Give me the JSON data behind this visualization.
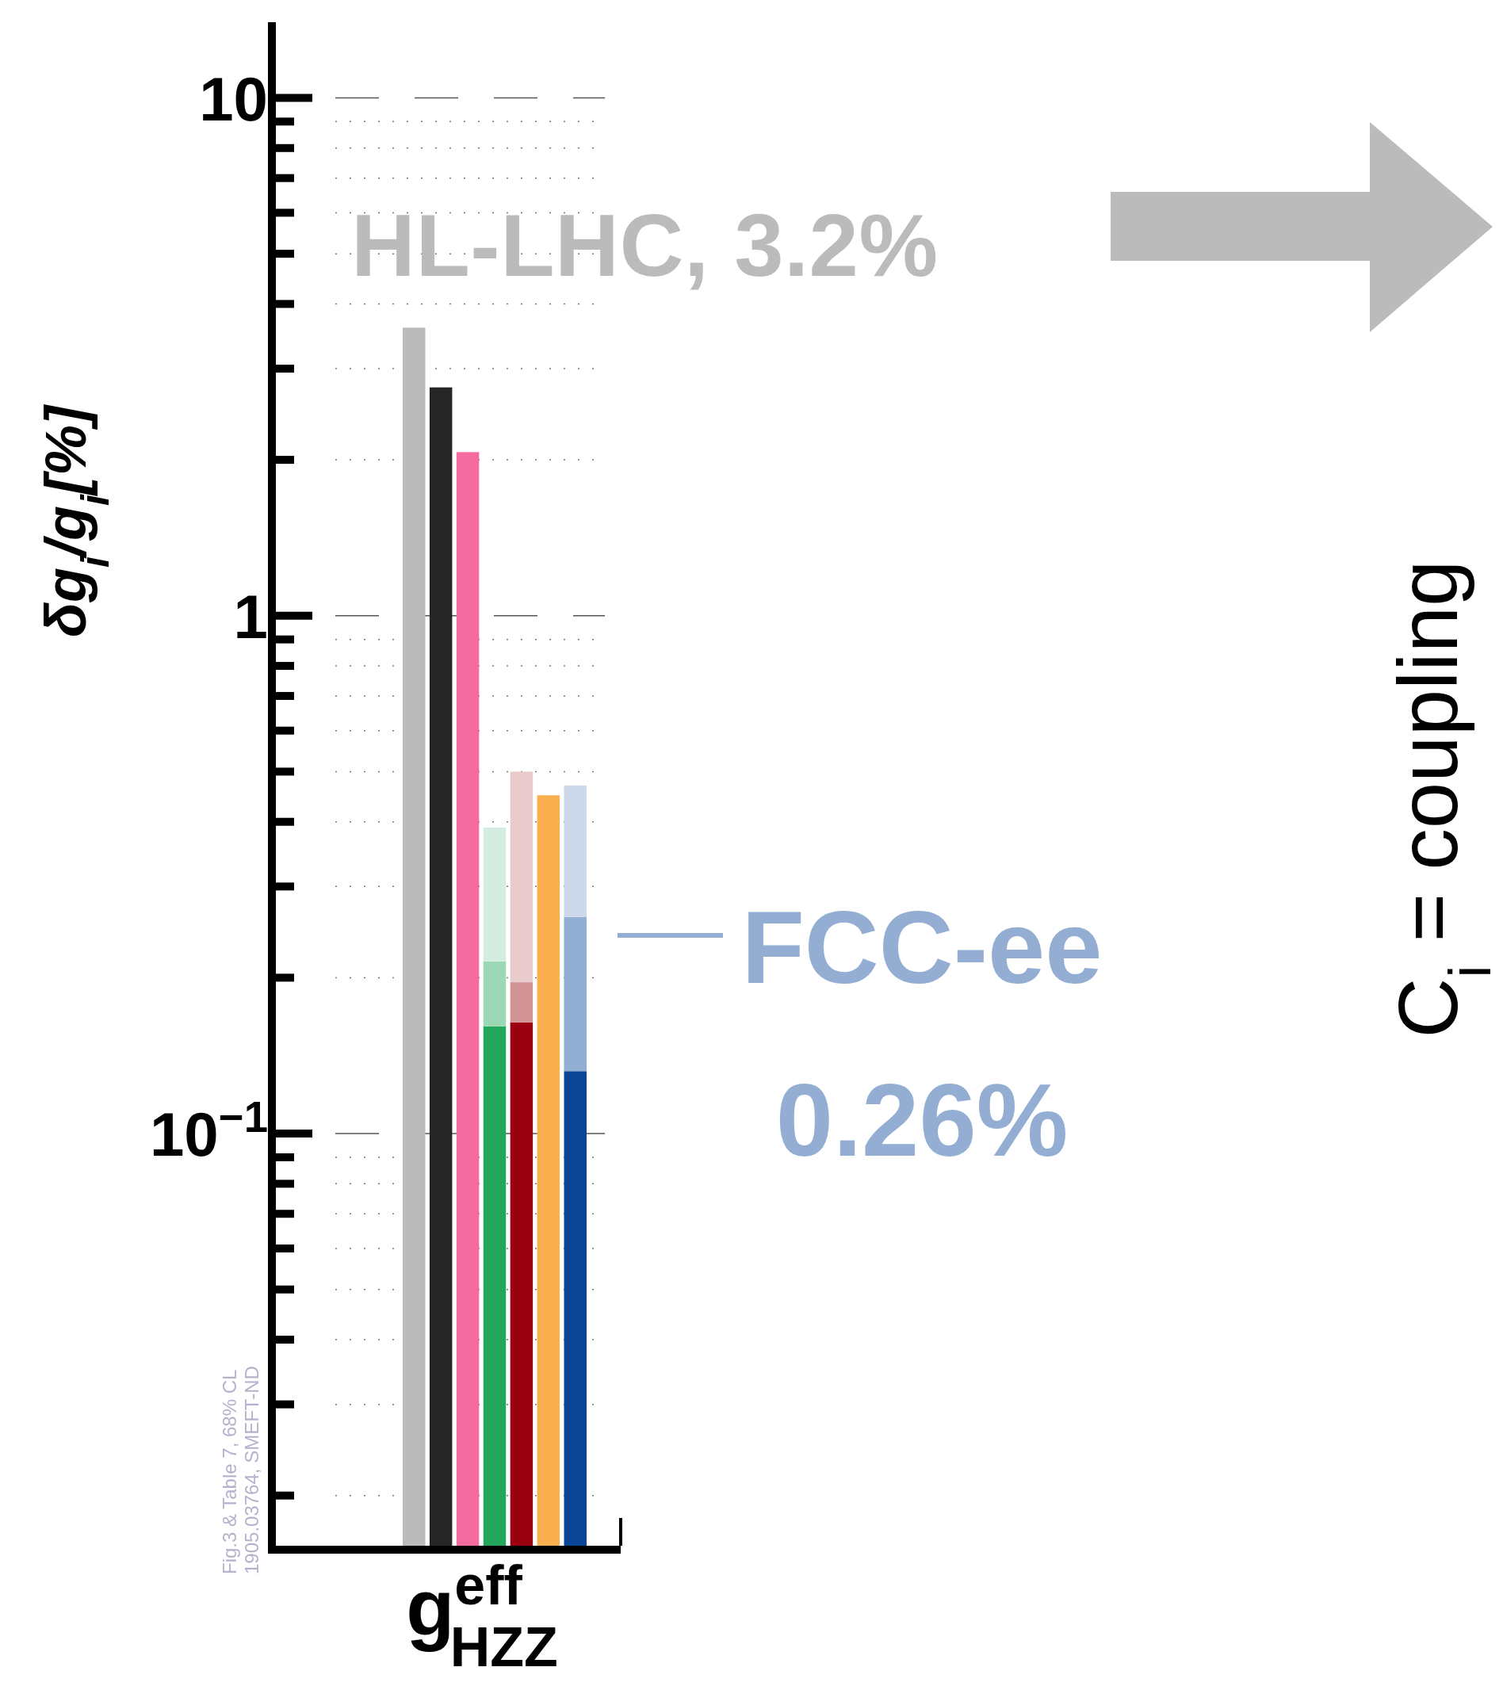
{
  "chart_data": {
    "type": "bar",
    "log": "y",
    "xlabel": "g$^{eff}$$_{HZZ}$",
    "ylabel": "δg$_{i}$/g$_{i}$[%]",
    "categories": [
      null,
      null,
      null,
      null,
      null,
      null,
      null
    ],
    "series": [
      {
        "colors": [
          "#bbbbbb",
          "#262626",
          "#f46ba0",
          "#22a85d",
          "#990010",
          "#fbaf4e",
          "#0b4696"
        ],
        "values": [
          3.6,
          2.76,
          2.07,
          0.161,
          0.164,
          0.45,
          0.132
        ]
      },
      {
        "colors": [
          null,
          null,
          null,
          "#9dd8b6",
          "#d39294",
          null,
          "#92aed2"
        ],
        "values": [
          null,
          null,
          null,
          0.054,
          0.032,
          null,
          0.13
        ]
      },
      {
        "colors": [
          null,
          null,
          null,
          "#d3eee0",
          "#eacbcd",
          null,
          "#cdd9ea"
        ],
        "values": [
          null,
          null,
          null,
          0.175,
          0.304,
          null,
          0.208
        ]
      }
    ],
    "ylim": [
      0.016,
      14
    ],
    "yticks": [
      {
        "value": 0.02,
        "label": null
      },
      {
        "value": 0.03,
        "label": null
      },
      {
        "value": 0.04,
        "label": null
      },
      {
        "value": 0.05,
        "label": null
      },
      {
        "value": 0.06,
        "label": null
      },
      {
        "value": 0.07,
        "label": null
      },
      {
        "value": 0.08,
        "label": null
      },
      {
        "value": 0.09,
        "label": null
      },
      {
        "value": 0.1,
        "label": "10$^{−1}$"
      },
      {
        "value": 0.2,
        "label": null
      },
      {
        "value": 0.3,
        "label": null
      },
      {
        "value": 0.4,
        "label": null
      },
      {
        "value": 0.5,
        "label": null
      },
      {
        "value": 0.6,
        "label": null
      },
      {
        "value": 0.7,
        "label": null
      },
      {
        "value": 0.8,
        "label": null
      },
      {
        "value": 0.9,
        "label": null
      },
      1,
      {
        "value": 2,
        "label": null
      },
      {
        "value": 3,
        "label": null
      },
      {
        "value": 4,
        "label": null
      },
      {
        "value": 5,
        "label": null
      },
      {
        "value": 6,
        "label": null
      },
      {
        "value": 7,
        "label": null
      },
      {
        "value": 8,
        "label": null
      },
      {
        "value": 9,
        "label": null
      },
      10
    ],
    "grid": "y",
    "stacked": true,
    "annotations": [
      "HL-LHC, 3.2%",
      "FCC-ee",
      "0.26%",
      "C$_{i}$ = coupling",
      "Fig.3 & Table 7, 68% CL",
      "1905.03764, SMEFT-ND"
    ]
  }
}
